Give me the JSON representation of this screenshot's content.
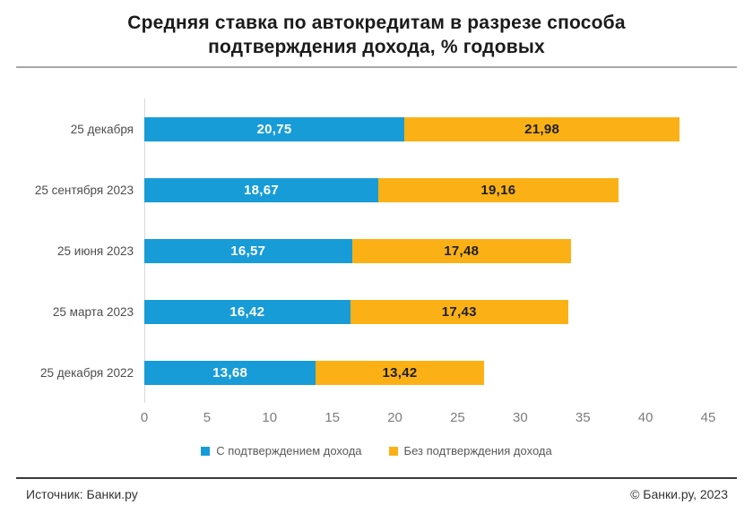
{
  "title_lines": [
    "Средняя ставка по автокредитам в разрезе способа",
    "подтверждения дохода, % годовых"
  ],
  "chart_data": {
    "type": "bar",
    "orientation": "horizontal",
    "stacked": true,
    "title": "Средняя ставка по автокредитам в разрезе способа подтверждения дохода, % годовых",
    "categories": [
      "25 декабря",
      "25 сентября 2023",
      "25 июня 2023",
      "25 марта 2023",
      "25 декабря 2022"
    ],
    "series": [
      {
        "name": "С подтверждением дохода",
        "color": "#189CD8",
        "value_label_color": "#FFFFFF",
        "values": [
          20.75,
          18.67,
          16.57,
          16.42,
          13.68
        ]
      },
      {
        "name": "Без подтверждения дохода",
        "color": "#FBB116",
        "value_label_color": "#1E1E1E",
        "values": [
          21.98,
          19.16,
          17.48,
          17.43,
          13.42
        ]
      }
    ],
    "xlim": [
      0,
      45
    ],
    "x_ticks": [
      0,
      5,
      10,
      15,
      20,
      25,
      30,
      35,
      40,
      45
    ],
    "value_label_decimals": 2,
    "decimal_separator": ",",
    "legend_position": "bottom",
    "grid": false
  },
  "footer": {
    "source": "Источник: Банки.ру",
    "copyright": "© Банки.ру, 2023"
  }
}
